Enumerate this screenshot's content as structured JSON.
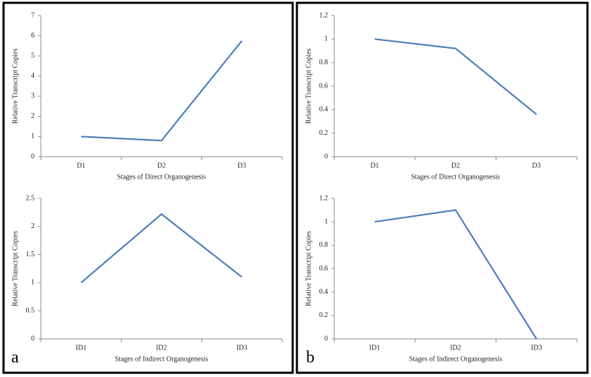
{
  "panel_labels": [
    "a",
    "b"
  ],
  "chart_data": [
    {
      "type": "line",
      "ylabel": "Relative Transcript Copies",
      "xlabel": "Stages of Direct Organogenesis",
      "categories": [
        "D1",
        "D2",
        "D3"
      ],
      "values": [
        1,
        0.8,
        5.75
      ],
      "color": "#4a7ebb",
      "ylim": [
        0,
        7
      ],
      "yticks": [
        0,
        1,
        2,
        3,
        4,
        5,
        6,
        7
      ]
    },
    {
      "type": "line",
      "ylabel": "Relative Transcript Copies",
      "xlabel": "Stages of Direct Organogenesis",
      "categories": [
        "D1",
        "D2",
        "D3"
      ],
      "values": [
        1,
        0.92,
        0.36
      ],
      "color": "#4a7ebb",
      "ylim": [
        0,
        1.2
      ],
      "yticks": [
        0,
        0.2,
        0.4,
        0.6,
        0.8,
        1,
        1.2
      ]
    },
    {
      "type": "line",
      "ylabel": "Relative Transcript Copies",
      "xlabel": "Stages of Indirect Organogenesis",
      "categories": [
        "ID1",
        "ID2",
        "ID3"
      ],
      "values": [
        1,
        2.22,
        1.1
      ],
      "color": "#4a7ebb",
      "ylim": [
        0,
        2.5
      ],
      "yticks": [
        0,
        0.5,
        1,
        1.5,
        2,
        2.5
      ]
    },
    {
      "type": "line",
      "ylabel": "Relative Transcript Copies",
      "xlabel": "Stages of Indirect Organogenesis",
      "categories": [
        "ID1",
        "ID2",
        "ID3"
      ],
      "values": [
        1,
        1.1,
        0
      ],
      "color": "#4a7ebb",
      "ylim": [
        0,
        1.2
      ],
      "yticks": [
        0,
        0.2,
        0.4,
        0.6,
        0.8,
        1,
        1.2
      ]
    }
  ]
}
